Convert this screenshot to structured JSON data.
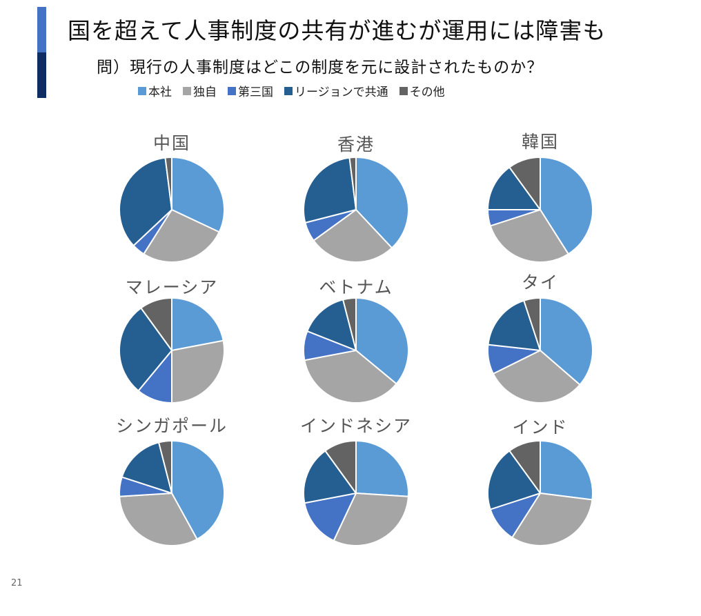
{
  "slide": {
    "title": "国を超えて人事制度の共有が進むが運用には障害も",
    "subtitle": "問）現行の人事制度はどこの制度を元に設計されたものか？",
    "page_number": "21"
  },
  "legend": [
    {
      "label": "本社",
      "color": "#5b9bd5"
    },
    {
      "label": "独自",
      "color": "#a5a5a5"
    },
    {
      "label": "第三国",
      "color": "#4472c4"
    },
    {
      "label": "リージョンで共通",
      "color": "#255e91"
    },
    {
      "label": "その他",
      "color": "#636363"
    }
  ],
  "chart_data": [
    {
      "type": "pie",
      "title": "中国",
      "categories": [
        "本社",
        "独自",
        "第三国",
        "リージョンで共通",
        "その他"
      ],
      "values": [
        32,
        27,
        4,
        35,
        2
      ]
    },
    {
      "type": "pie",
      "title": "香港",
      "categories": [
        "本社",
        "独自",
        "第三国",
        "リージョンで共通",
        "その他"
      ],
      "values": [
        38,
        27,
        6,
        27,
        2
      ]
    },
    {
      "type": "pie",
      "title": "韓国",
      "categories": [
        "本社",
        "独自",
        "第三国",
        "リージョンで共通",
        "その他"
      ],
      "values": [
        41,
        29,
        5,
        15,
        10
      ]
    },
    {
      "type": "pie",
      "title": "マレーシア",
      "categories": [
        "本社",
        "独自",
        "第三国",
        "リージョンで共通",
        "その他"
      ],
      "values": [
        22,
        28,
        11,
        29,
        10
      ]
    },
    {
      "type": "pie",
      "title": "ベトナム",
      "categories": [
        "本社",
        "独自",
        "第三国",
        "リージョンで共通",
        "その他"
      ],
      "values": [
        36,
        36,
        9,
        15,
        4
      ]
    },
    {
      "type": "pie",
      "title": "タイ",
      "categories": [
        "本社",
        "独自",
        "第三国",
        "リージョンで共通",
        "その他"
      ],
      "values": [
        36,
        31,
        9,
        18,
        5
      ]
    },
    {
      "type": "pie",
      "title": "シンガポール",
      "categories": [
        "本社",
        "独自",
        "第三国",
        "リージョンで共通",
        "その他"
      ],
      "values": [
        42,
        32,
        6,
        16,
        4
      ]
    },
    {
      "type": "pie",
      "title": "インドネシア",
      "categories": [
        "本社",
        "独自",
        "第三国",
        "リージョンで共通",
        "その他"
      ],
      "values": [
        26,
        31,
        15,
        18,
        10
      ]
    },
    {
      "type": "pie",
      "title": "インド",
      "categories": [
        "本社",
        "独自",
        "第三国",
        "リージョンで共通",
        "その他"
      ],
      "values": [
        27,
        32,
        11,
        20,
        10
      ]
    }
  ]
}
